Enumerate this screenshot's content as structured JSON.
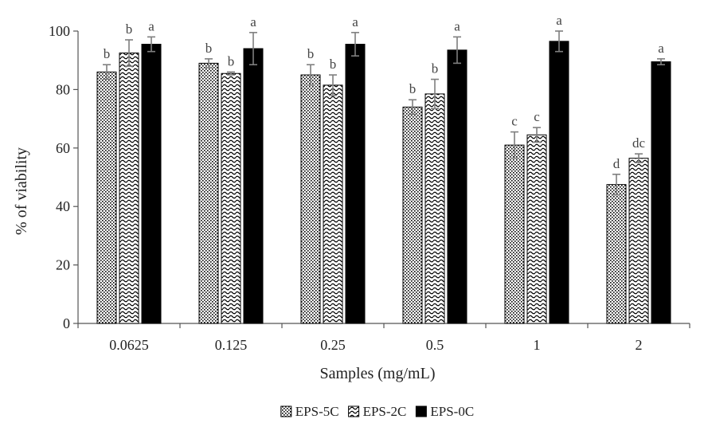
{
  "chart_data": {
    "type": "bar",
    "title": "",
    "xlabel": "Samples (mg/mL)",
    "ylabel": "% of viability",
    "categories": [
      "0.0625",
      "0.125",
      "0.25",
      "0.5",
      "1",
      "2"
    ],
    "ylim": [
      0,
      100
    ],
    "yticks": [
      0,
      20,
      40,
      60,
      80,
      100
    ],
    "grid": false,
    "legend_position": "bottom",
    "series": [
      {
        "name": "EPS-5C",
        "pattern": "dots",
        "values": [
          86,
          89,
          85,
          74,
          61,
          47.5
        ],
        "errors": [
          2.5,
          1.5,
          3.5,
          2.5,
          4.5,
          3.5
        ],
        "labels": [
          "b",
          "b",
          "b",
          "b",
          "c",
          "d"
        ]
      },
      {
        "name": "EPS-2C",
        "pattern": "waves",
        "values": [
          92.5,
          85.5,
          81.5,
          78.5,
          64.5,
          56.5
        ],
        "errors": [
          4.5,
          0.5,
          3.5,
          5,
          2.5,
          1.5
        ],
        "labels": [
          "b",
          "b",
          "b",
          "b",
          "c",
          "dc"
        ]
      },
      {
        "name": "EPS-0C",
        "pattern": "solid",
        "values": [
          95.5,
          94,
          95.5,
          93.5,
          96.5,
          89.5
        ],
        "errors": [
          2.5,
          5.5,
          4,
          4.5,
          3.5,
          1
        ],
        "labels": [
          "a",
          "a",
          "a",
          "a",
          "a",
          "a"
        ]
      }
    ],
    "colors": {
      "fill": "#000000",
      "background": "#ffffff",
      "axis": "#555555",
      "error": "#7f7f7f"
    }
  }
}
